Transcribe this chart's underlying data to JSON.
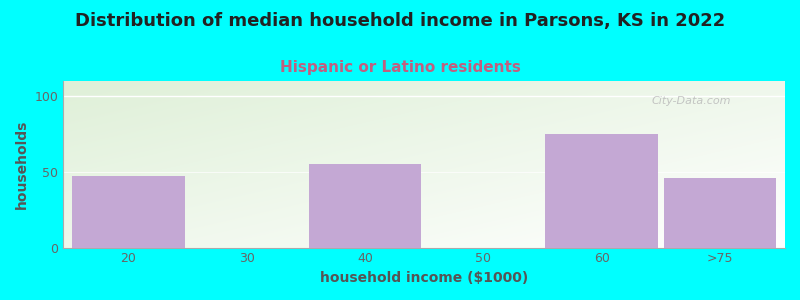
{
  "title": "Distribution of median household income in Parsons, KS in 2022",
  "subtitle": "Hispanic or Latino residents",
  "xlabel": "household income ($1000)",
  "ylabel": "households",
  "bar_values": [
    47,
    55,
    75,
    46
  ],
  "bar_color": "#c4a8d4",
  "bar_positions": [
    0,
    2,
    4,
    5
  ],
  "bar_width": 0.95,
  "xtick_labels": [
    "20",
    "30",
    "40",
    "50",
    "60",
    ">75"
  ],
  "xtick_positions": [
    0,
    1,
    2,
    3,
    4,
    5
  ],
  "ylim": [
    0,
    110
  ],
  "yticks": [
    0,
    50,
    100
  ],
  "xlim": [
    -0.55,
    5.55
  ],
  "background_color": "#00FFFF",
  "grad_color_topleft": "#dff0d8",
  "grad_color_bottomright": "#ffffff",
  "title_fontsize": 13,
  "subtitle_fontsize": 11,
  "subtitle_color": "#c06080",
  "watermark": "City-Data.com",
  "axis_label_color": "#555555",
  "tick_label_color": "#666666"
}
